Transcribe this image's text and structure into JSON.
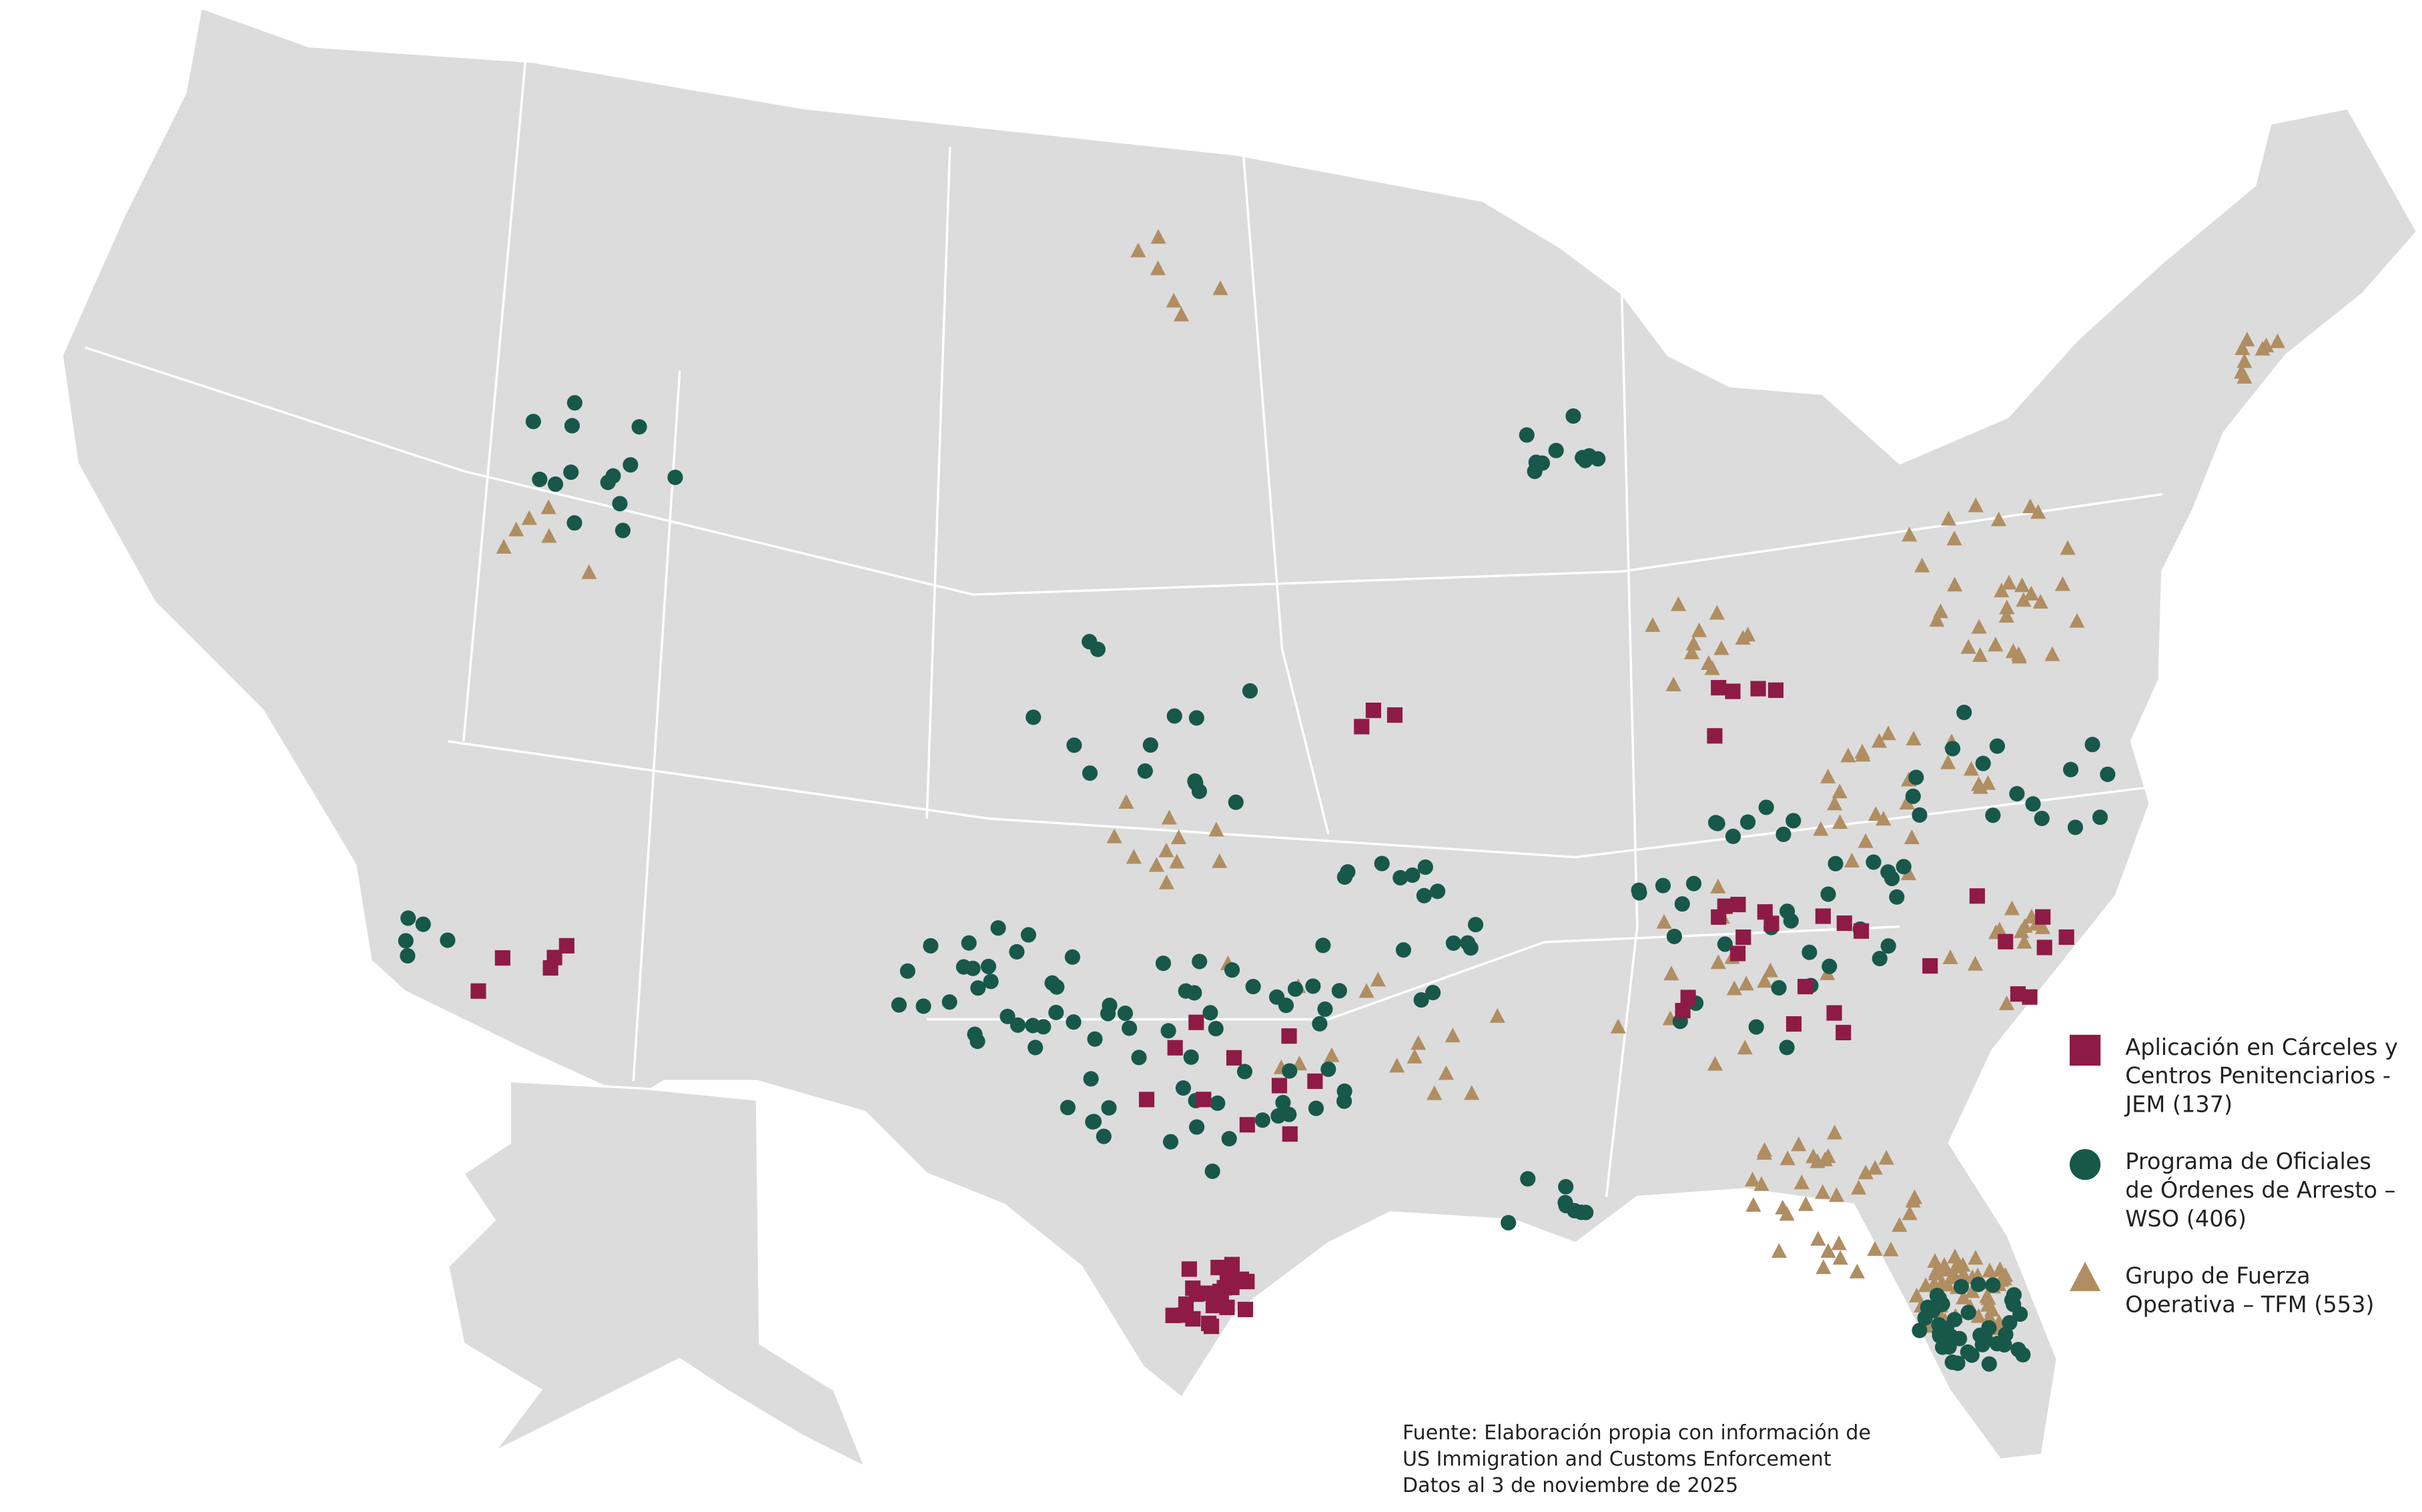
{
  "legend": {
    "items": [
      {
        "symbol": "square",
        "color": "#8e1b45",
        "label_lines": [
          "Aplicación en Cárceles y",
          "Centros Penitenciarios -",
          "JEM  (137)"
        ]
      },
      {
        "symbol": "circle",
        "color": "#17584a",
        "label_lines": [
          "Programa de Oficiales",
          "de Órdenes de Arresto –",
          "WSO  (406)"
        ]
      },
      {
        "symbol": "triangle",
        "color": "#b08e62",
        "label_lines": [
          "Grupo de Fuerza",
          "Operativa – TFM  (553)"
        ]
      }
    ]
  },
  "source": {
    "lines": [
      "Fuente: Elaboración propia con información de",
      "US Immigration and Customs Enforcement",
      "Datos al 3 de noviembre de 2025"
    ]
  }
}
